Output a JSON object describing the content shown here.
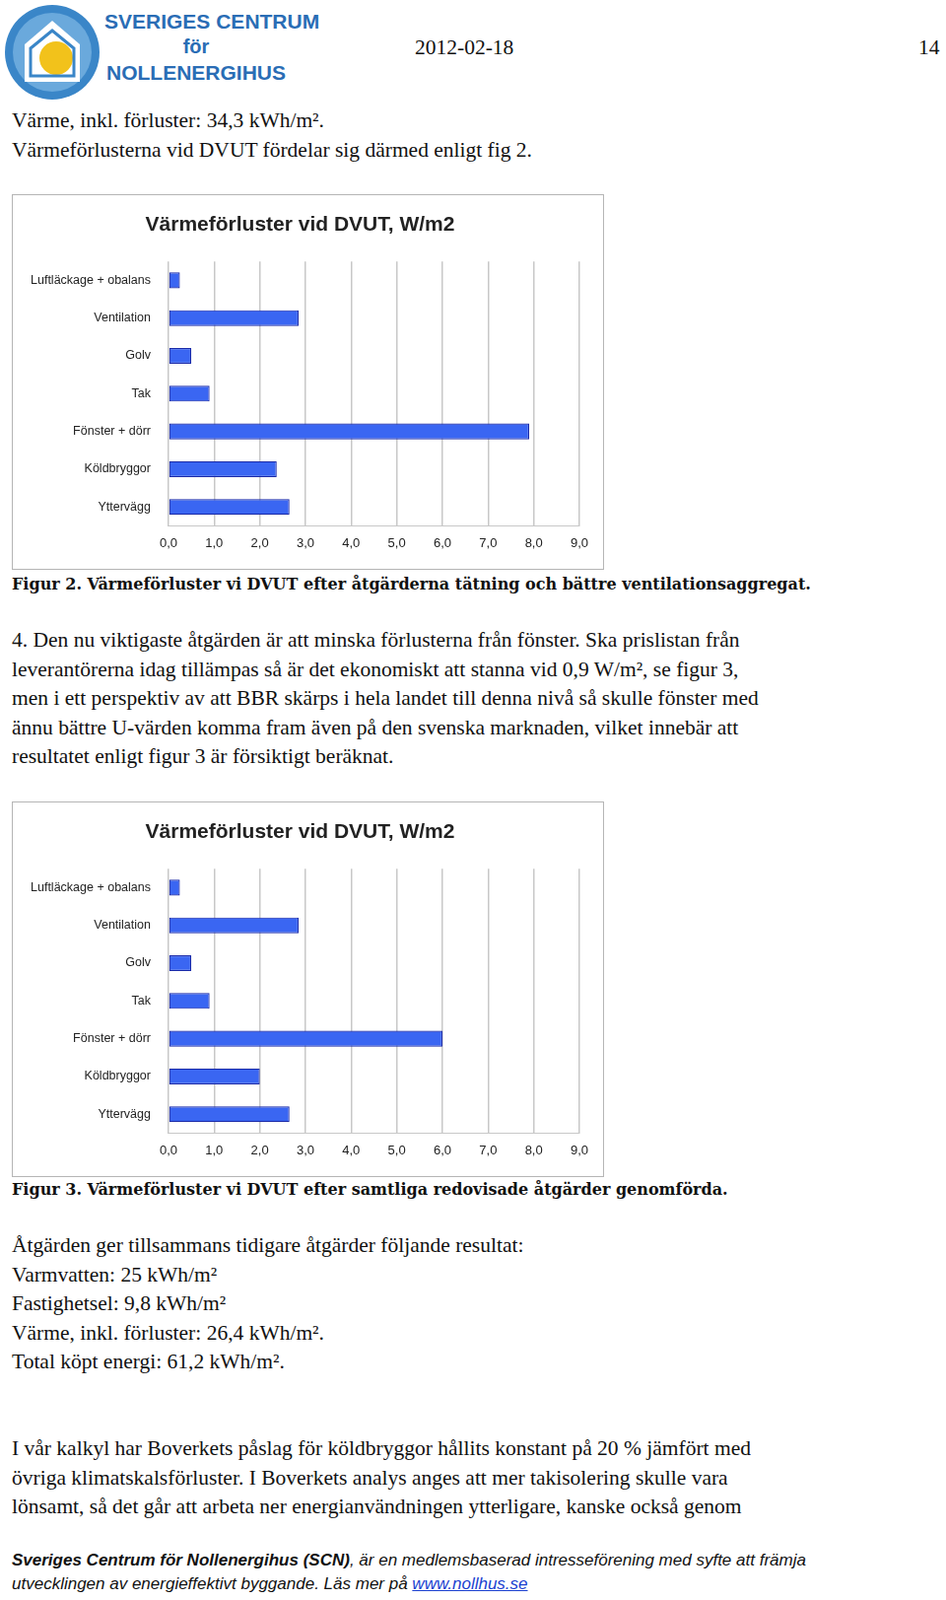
{
  "header": {
    "logo_lines": [
      "SVERIGES CENTRUM",
      "för",
      "NOLLENERGIHUS"
    ],
    "date": "2012-02-18",
    "page": "14"
  },
  "intro_lines": [
    "Värme, inkl. förluster: 34,3 kWh/m².",
    "Värmeförlusterna vid DVUT fördelar sig därmed enligt fig 2."
  ],
  "chart_data": [
    {
      "type": "bar",
      "orientation": "horizontal",
      "title": "Värmeförluster vid DVUT, W/m2",
      "categories": [
        "Luftläckage + obalans",
        "Ventilation",
        "Golv",
        "Tak",
        "Fönster + dörr",
        "Köldbryggor",
        "Yttervägg"
      ],
      "values": [
        0.25,
        2.85,
        0.5,
        0.9,
        7.9,
        2.37,
        2.65
      ],
      "color": "#3a66f2",
      "xlim": [
        0,
        9
      ],
      "xticks": [
        {
          "value": 0,
          "label": "0,0"
        },
        {
          "value": 1,
          "label": "1,0"
        },
        {
          "value": 2,
          "label": "2,0"
        },
        {
          "value": 3,
          "label": "3,0"
        },
        {
          "value": 4,
          "label": "4,0"
        },
        {
          "value": 5,
          "label": "5,0"
        },
        {
          "value": 6,
          "label": "6,0"
        },
        {
          "value": 7,
          "label": "7,0"
        },
        {
          "value": 8,
          "label": "8,0"
        },
        {
          "value": 9,
          "label": "9,0"
        }
      ],
      "grid": true,
      "data_labels": false
    },
    {
      "type": "bar",
      "orientation": "horizontal",
      "title": "Värmeförluster vid DVUT, W/m2",
      "categories": [
        "Luftläckage + obalans",
        "Ventilation",
        "Golv",
        "Tak",
        "Fönster + dörr",
        "Köldbryggor",
        "Yttervägg"
      ],
      "values": [
        0.25,
        2.85,
        0.5,
        0.9,
        6.0,
        2.0,
        2.65
      ],
      "color": "#3a66f2",
      "xlim": [
        0,
        9
      ],
      "xticks": [
        {
          "value": 0,
          "label": "0,0"
        },
        {
          "value": 1,
          "label": "1,0"
        },
        {
          "value": 2,
          "label": "2,0"
        },
        {
          "value": 3,
          "label": "3,0"
        },
        {
          "value": 4,
          "label": "4,0"
        },
        {
          "value": 5,
          "label": "5,0"
        },
        {
          "value": 6,
          "label": "6,0"
        },
        {
          "value": 7,
          "label": "7,0"
        },
        {
          "value": 8,
          "label": "8,0"
        },
        {
          "value": 9,
          "label": "9,0"
        }
      ],
      "grid": true,
      "data_labels": false
    }
  ],
  "captions": [
    "Figur 2. Värmeförluster vi DVUT efter åtgärderna tätning och bättre ventilationsaggregat.",
    "Figur 3. Värmeförluster vi DVUT efter samtliga redovisade åtgärder genomförda."
  ],
  "paragraph_4_lines": [
    "4. Den nu viktigaste åtgärden är att minska förlusterna från fönster. Ska prislistan från",
    "leverantörerna idag tillämpas så är det ekonomiskt att stanna vid 0,9 W/m², se figur 3,",
    "men i ett perspektiv av att BBR skärps i hela landet till denna nivå så skulle fönster med",
    "ännu bättre U-värden komma fram även på den svenska marknaden, vilket innebär att",
    "resultatet enligt figur 3 är försiktigt beräknat."
  ],
  "results_lines": [
    "Åtgärden ger tillsammans tidigare åtgärder följande resultat:",
    "Varmvatten: 25 kWh/m²",
    "Fastighetsel: 9,8 kWh/m²",
    "Värme, inkl. förluster: 26,4 kWh/m².",
    "Total köpt energi: 61,2 kWh/m²."
  ],
  "final_paragraph_lines": [
    "I vår kalkyl har Boverkets påslag för köldbryggor hållits konstant på 20 % jämfört med",
    "övriga klimatskalsförluster. I Boverkets analys anges att mer takisolering skulle vara",
    "lönsamt, så det går att arbeta ner energianvändningen ytterligare, kanske också genom"
  ],
  "footer_lines": [
    [
      {
        "bold": "Sveriges Centrum för Nollenergihus (SCN)"
      },
      {
        "text": ", är en medlemsbaserad intresseförening med syfte att främja"
      }
    ],
    [
      {
        "text": "utvecklingen av energieffektivt byggande. Läs mer på "
      },
      {
        "link": "www.nollhus.se"
      }
    ]
  ]
}
